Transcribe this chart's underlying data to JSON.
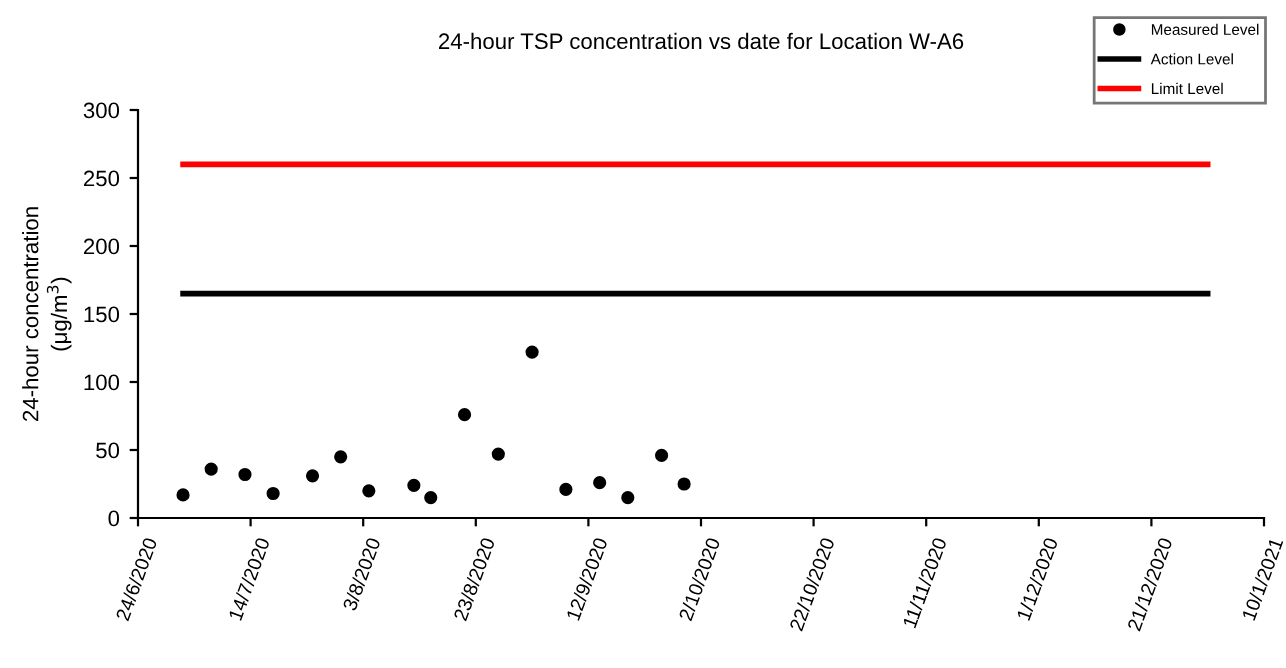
{
  "chart_data": {
    "type": "scatter",
    "title": "24-hour TSP concentration vs date for Location W-A6",
    "ylabel": "24-hour concentration\n(μg/m$^{3}$)",
    "series": [
      {
        "name": "Measured Level",
        "color": "#000000",
        "marker": "circle",
        "x": [
          "2020-07-02",
          "2020-07-07",
          "2020-07-13",
          "2020-07-18",
          "2020-07-25",
          "2020-07-30",
          "2020-08-04",
          "2020-08-12",
          "2020-08-15",
          "2020-08-21",
          "2020-08-27",
          "2020-09-02",
          "2020-09-08",
          "2020-09-14",
          "2020-09-19",
          "2020-09-25",
          "2020-09-29"
        ],
        "values": [
          17,
          36,
          32,
          18,
          31,
          45,
          20,
          24,
          15,
          76,
          47,
          122,
          21,
          26,
          15,
          46,
          25
        ]
      },
      {
        "name": "Action Level",
        "type": "line",
        "color": "#000000",
        "x": [
          "2020-07-02",
          "2020-12-31"
        ],
        "values": [
          165,
          165
        ]
      },
      {
        "name": "Limit Level",
        "type": "line",
        "color": "#ff0000",
        "x": [
          "2020-07-02",
          "2020-12-31"
        ],
        "values": [
          260,
          260
        ]
      }
    ],
    "xlim": [
      "2020-06-24",
      "2021-01-10"
    ],
    "xticks": [
      {
        "value": "2020-06-24",
        "label": "24/6/2020"
      },
      {
        "value": "2020-07-14",
        "label": "14/7/2020"
      },
      {
        "value": "2020-08-03",
        "label": "3/8/2020"
      },
      {
        "value": "2020-08-23",
        "label": "23/8/2020"
      },
      {
        "value": "2020-09-12",
        "label": "12/9/2020"
      },
      {
        "value": "2020-10-02",
        "label": "2/10/2020"
      },
      {
        "value": "2020-10-22",
        "label": "22/10/2020"
      },
      {
        "value": "2020-11-11",
        "label": "11/11/2020"
      },
      {
        "value": "2020-12-01",
        "label": "1/12/2020"
      },
      {
        "value": "2020-12-21",
        "label": "21/12/2020"
      },
      {
        "value": "2021-01-10",
        "label": "10/1/2021"
      }
    ],
    "ylim": [
      0,
      300
    ],
    "yticks": [
      0,
      50,
      100,
      150,
      200,
      250,
      300
    ],
    "grid": false,
    "legend": "top right"
  }
}
